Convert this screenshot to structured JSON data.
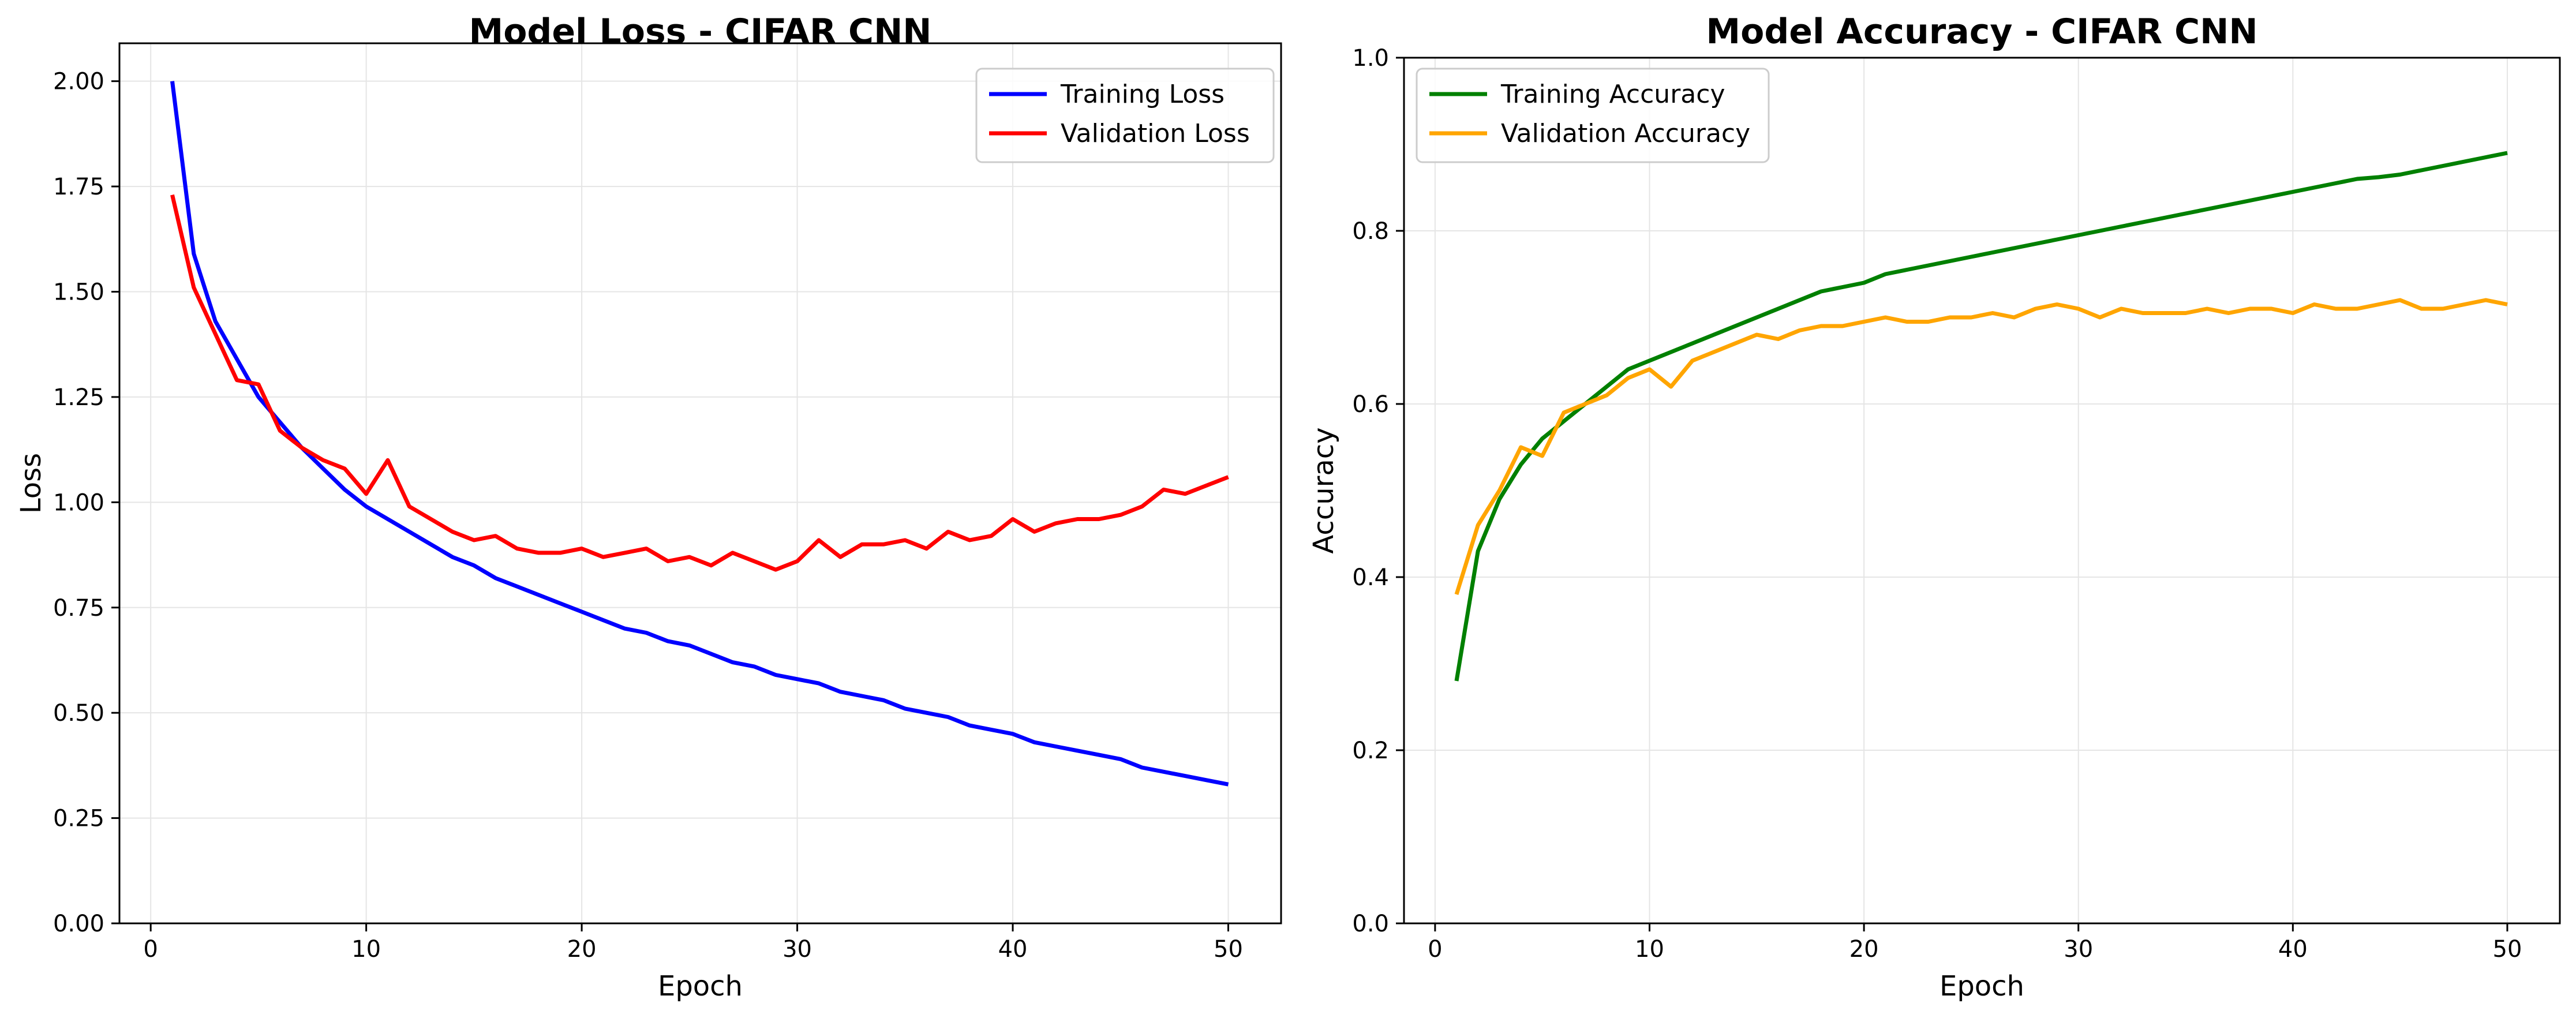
{
  "chart_data": [
    {
      "type": "line",
      "title": "Model Loss - CIFAR CNN",
      "xlabel": "Epoch",
      "ylabel": "Loss",
      "xlim": [
        -1.45,
        52.45
      ],
      "ylim": [
        0,
        2.09
      ],
      "xticks": [
        0,
        10,
        20,
        30,
        40,
        50
      ],
      "yticks": [
        0.0,
        0.25,
        0.5,
        0.75,
        1.0,
        1.25,
        1.5,
        1.75,
        2.0
      ],
      "ytick_labels": [
        "0.00",
        "0.25",
        "0.50",
        "0.75",
        "1.00",
        "1.25",
        "1.50",
        "1.75",
        "2.00"
      ],
      "grid": true,
      "legend_position": "top-right",
      "x": [
        1,
        2,
        3,
        4,
        5,
        6,
        7,
        8,
        9,
        10,
        11,
        12,
        13,
        14,
        15,
        16,
        17,
        18,
        19,
        20,
        21,
        22,
        23,
        24,
        25,
        26,
        27,
        28,
        29,
        30,
        31,
        32,
        33,
        34,
        35,
        36,
        37,
        38,
        39,
        40,
        41,
        42,
        43,
        44,
        45,
        46,
        47,
        48,
        49,
        50
      ],
      "series": [
        {
          "name": "Training Loss",
          "color": "#0000ff",
          "values": [
            2.0,
            1.59,
            1.43,
            1.34,
            1.25,
            1.19,
            1.13,
            1.08,
            1.03,
            0.99,
            0.96,
            0.93,
            0.9,
            0.87,
            0.85,
            0.82,
            0.8,
            0.78,
            0.76,
            0.74,
            0.72,
            0.7,
            0.69,
            0.67,
            0.66,
            0.64,
            0.62,
            0.61,
            0.59,
            0.58,
            0.57,
            0.55,
            0.54,
            0.53,
            0.51,
            0.5,
            0.49,
            0.47,
            0.46,
            0.45,
            0.43,
            0.42,
            0.41,
            0.4,
            0.39,
            0.37,
            0.36,
            0.35,
            0.34,
            0.33
          ]
        },
        {
          "name": "Validation Loss",
          "color": "#ff0000",
          "values": [
            1.73,
            1.51,
            1.4,
            1.29,
            1.28,
            1.17,
            1.13,
            1.1,
            1.08,
            1.02,
            1.1,
            0.99,
            0.96,
            0.93,
            0.91,
            0.92,
            0.89,
            0.88,
            0.88,
            0.89,
            0.87,
            0.88,
            0.89,
            0.86,
            0.87,
            0.85,
            0.88,
            0.86,
            0.84,
            0.86,
            0.91,
            0.87,
            0.9,
            0.9,
            0.91,
            0.89,
            0.93,
            0.91,
            0.92,
            0.96,
            0.93,
            0.95,
            0.96,
            0.96,
            0.97,
            0.99,
            1.03,
            1.02,
            1.04,
            1.06
          ]
        }
      ]
    },
    {
      "type": "line",
      "title": "Model Accuracy - CIFAR CNN",
      "xlabel": "Epoch",
      "ylabel": "Accuracy",
      "xlim": [
        -1.45,
        52.45
      ],
      "ylim": [
        0,
        1.0
      ],
      "xticks": [
        0,
        10,
        20,
        30,
        40,
        50
      ],
      "yticks": [
        0.0,
        0.2,
        0.4,
        0.6,
        0.8,
        1.0
      ],
      "ytick_labels": [
        "0.0",
        "0.2",
        "0.4",
        "0.6",
        "0.8",
        "1.0"
      ],
      "grid": true,
      "legend_position": "top-left",
      "x": [
        1,
        2,
        3,
        4,
        5,
        6,
        7,
        8,
        9,
        10,
        11,
        12,
        13,
        14,
        15,
        16,
        17,
        18,
        19,
        20,
        21,
        22,
        23,
        24,
        25,
        26,
        27,
        28,
        29,
        30,
        31,
        32,
        33,
        34,
        35,
        36,
        37,
        38,
        39,
        40,
        41,
        42,
        43,
        44,
        45,
        46,
        47,
        48,
        49,
        50
      ],
      "series": [
        {
          "name": "Training Accuracy",
          "color": "#008000",
          "values": [
            0.28,
            0.43,
            0.49,
            0.53,
            0.56,
            0.58,
            0.6,
            0.62,
            0.64,
            0.65,
            0.66,
            0.67,
            0.68,
            0.69,
            0.7,
            0.71,
            0.72,
            0.73,
            0.735,
            0.74,
            0.75,
            0.755,
            0.76,
            0.765,
            0.77,
            0.775,
            0.78,
            0.785,
            0.79,
            0.795,
            0.8,
            0.805,
            0.81,
            0.815,
            0.82,
            0.825,
            0.83,
            0.835,
            0.84,
            0.845,
            0.85,
            0.855,
            0.86,
            0.862,
            0.865,
            0.87,
            0.875,
            0.88,
            0.885,
            0.89
          ]
        },
        {
          "name": "Validation Accuracy",
          "color": "#ffa500",
          "values": [
            0.38,
            0.46,
            0.5,
            0.55,
            0.54,
            0.59,
            0.6,
            0.61,
            0.63,
            0.64,
            0.62,
            0.65,
            0.66,
            0.67,
            0.68,
            0.675,
            0.685,
            0.69,
            0.69,
            0.695,
            0.7,
            0.695,
            0.695,
            0.7,
            0.7,
            0.705,
            0.7,
            0.71,
            0.715,
            0.71,
            0.7,
            0.71,
            0.705,
            0.705,
            0.705,
            0.71,
            0.705,
            0.71,
            0.71,
            0.705,
            0.715,
            0.71,
            0.71,
            0.715,
            0.72,
            0.71,
            0.71,
            0.715,
            0.72,
            0.715
          ]
        }
      ]
    }
  ]
}
